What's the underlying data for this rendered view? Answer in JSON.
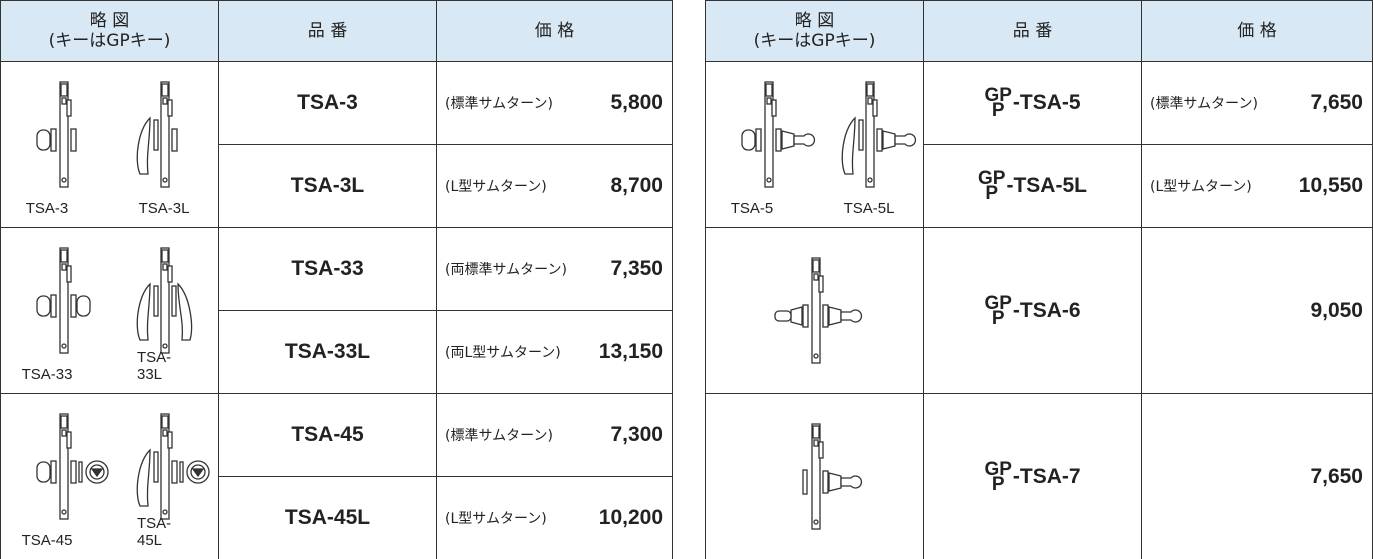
{
  "left_table": {
    "header": {
      "diagram": [
        "略 図",
        "(キーはGPキー)"
      ],
      "product": "品 番",
      "price": "価 格"
    },
    "groups": [
      {
        "diagrams": [
          "TSA-3",
          "TSA-3L"
        ],
        "rows": [
          {
            "product": "TSA-3",
            "note": "(標準サムターン)",
            "price": "5,800"
          },
          {
            "product": "TSA-3L",
            "note": "(L型サムターン)",
            "price": "8,700"
          }
        ]
      },
      {
        "diagrams": [
          "TSA-33",
          "TSA-33L"
        ],
        "rows": [
          {
            "product": "TSA-33",
            "note": "(両標準サムターン)",
            "price": "7,350"
          },
          {
            "product": "TSA-33L",
            "note": "(両L型サムターン)",
            "price": "13,150"
          }
        ]
      },
      {
        "diagrams": [
          "TSA-45",
          "TSA-45L"
        ],
        "rows": [
          {
            "product": "TSA-45",
            "note": "(標準サムターン)",
            "price": "7,300"
          },
          {
            "product": "TSA-45L",
            "note": "(L型サムターン)",
            "price": "10,200"
          }
        ]
      }
    ]
  },
  "right_table": {
    "header": {
      "diagram": [
        "略 図",
        "(キーはGPキー)"
      ],
      "product": "品 番",
      "price": "価 格"
    },
    "groups": [
      {
        "diagrams": [
          "TSA-5",
          "TSA-5L"
        ],
        "rows": [
          {
            "prefix_top": "GP",
            "prefix_bottom": "P",
            "product": "-TSA-5",
            "note": "(標準サムターン)",
            "price": "7,650"
          },
          {
            "prefix_top": "GP",
            "prefix_bottom": "P",
            "product": "-TSA-5L",
            "note": "(L型サムターン)",
            "price": "10,550"
          }
        ]
      },
      {
        "diagrams": [],
        "rows": [
          {
            "prefix_top": "GP",
            "prefix_bottom": "P",
            "product": "-TSA-6",
            "price": "9,050"
          }
        ]
      },
      {
        "diagrams": [],
        "rows": [
          {
            "prefix_top": "GP",
            "prefix_bottom": "P",
            "product": "-TSA-7",
            "price": "7,650"
          }
        ]
      }
    ]
  }
}
